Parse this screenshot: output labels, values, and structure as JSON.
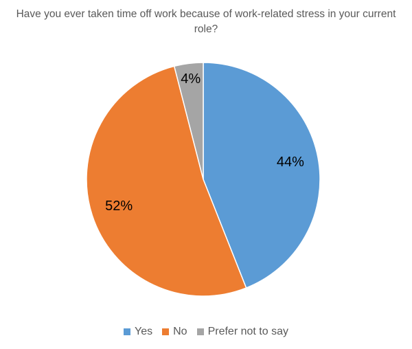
{
  "chart_data": {
    "type": "pie",
    "title": "Have you ever taken time off work because of work-related stress in your current role?",
    "categories": [
      "Yes",
      "No",
      "Prefer not to say"
    ],
    "values": [
      44,
      52,
      4
    ],
    "value_labels": [
      "44%",
      "52%",
      "4%"
    ],
    "colors": [
      "#5b9bd5",
      "#ed7d31",
      "#a5a5a5"
    ],
    "legend": "bottom"
  }
}
